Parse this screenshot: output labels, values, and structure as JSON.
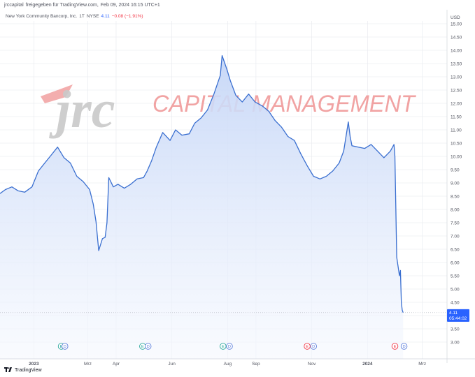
{
  "header": {
    "publisher": "jrccapital",
    "text": "freigegeben für TradingView.com,",
    "date": "Feb 09, 2024 16:15 UTC+1"
  },
  "legend": {
    "symbol": "New York Community Bancorp, Inc.",
    "interval": "1T",
    "exchange": "NYSE",
    "price": "4.11",
    "change": "−0.08 (−1.91%)"
  },
  "watermark": {
    "logo_text": "jrc",
    "subtitle": "CAPITAL MANAGEMENT"
  },
  "currency_label": "USD",
  "price_badge": {
    "price": "4.11",
    "countdown": "05:44:02"
  },
  "footer": {
    "brand": "TradingView"
  },
  "colors": {
    "line": "#3a6fd0",
    "fill_top": "#c5d6f7",
    "fill_bottom": "#f5f8fe",
    "grid": "#e6e8ee",
    "badge": "#2962ff",
    "earnings": "#26a69a",
    "earnings_neg": "#f23645",
    "dividend": "#5b7ddb",
    "watermark_red": "#f09a9a",
    "watermark_gray": "#c9c9c9"
  },
  "chart_data": {
    "type": "area",
    "title": "",
    "xlabel": "",
    "ylabel": "",
    "ylim": [
      2.7,
      15.3
    ],
    "y_ticks": [
      "15.00",
      "14.50",
      "14.00",
      "13.50",
      "13.00",
      "12.50",
      "12.00",
      "11.50",
      "11.00",
      "10.50",
      "10.00",
      "9.50",
      "9.00",
      "8.50",
      "8.00",
      "7.50",
      "7.00",
      "6.50",
      "6.00",
      "5.50",
      "5.00",
      "4.50",
      "4.00",
      "3.50",
      "3.00"
    ],
    "x_ticks": [
      "2023",
      "Mrz",
      "Apr",
      "Jun",
      "Aug",
      "Sep",
      "Nov",
      "2024",
      "Mrz"
    ],
    "x_tick_dates": [
      "2023-01-01",
      "2023-03-01",
      "2023-04-01",
      "2023-06-01",
      "2023-08-01",
      "2023-09-01",
      "2023-11-01",
      "2024-01-01",
      "2024-03-01"
    ],
    "x_range": [
      "2022-11-25",
      "2024-03-28"
    ],
    "current_price": 4.11,
    "grid": true,
    "series": [
      {
        "name": "",
        "dates": [
          "2022-11-25",
          "2022-12-01",
          "2022-12-08",
          "2022-12-15",
          "2022-12-22",
          "2022-12-30",
          "2023-01-06",
          "2023-01-13",
          "2023-01-20",
          "2023-01-27",
          "2023-02-03",
          "2023-02-10",
          "2023-02-17",
          "2023-02-24",
          "2023-03-03",
          "2023-03-07",
          "2023-03-10",
          "2023-03-13",
          "2023-03-17",
          "2023-03-20",
          "2023-03-22",
          "2023-03-24",
          "2023-03-29",
          "2023-04-03",
          "2023-04-10",
          "2023-04-17",
          "2023-04-24",
          "2023-05-01",
          "2023-05-05",
          "2023-05-10",
          "2023-05-15",
          "2023-05-22",
          "2023-05-30",
          "2023-06-05",
          "2023-06-12",
          "2023-06-20",
          "2023-06-26",
          "2023-07-03",
          "2023-07-10",
          "2023-07-17",
          "2023-07-24",
          "2023-07-26",
          "2023-07-31",
          "2023-08-04",
          "2023-08-10",
          "2023-08-17",
          "2023-08-24",
          "2023-08-31",
          "2023-09-08",
          "2023-09-15",
          "2023-09-22",
          "2023-09-29",
          "2023-10-06",
          "2023-10-13",
          "2023-10-20",
          "2023-10-27",
          "2023-11-03",
          "2023-11-10",
          "2023-11-17",
          "2023-11-24",
          "2023-12-01",
          "2023-12-06",
          "2023-12-11",
          "2023-12-13",
          "2023-12-15",
          "2023-12-22",
          "2023-12-29",
          "2024-01-05",
          "2024-01-12",
          "2024-01-19",
          "2024-01-26",
          "2024-01-30",
          "2024-01-31",
          "2024-02-02",
          "2024-02-05",
          "2024-02-06",
          "2024-02-07",
          "2024-02-08",
          "2024-02-09"
        ],
        "values": [
          8.6,
          8.75,
          8.85,
          8.7,
          8.65,
          8.85,
          9.45,
          9.75,
          10.05,
          10.35,
          9.95,
          9.75,
          9.25,
          9.05,
          8.75,
          8.2,
          7.55,
          6.45,
          6.9,
          6.95,
          7.5,
          9.2,
          8.85,
          8.95,
          8.8,
          8.95,
          9.15,
          9.2,
          9.45,
          9.85,
          10.35,
          10.9,
          10.6,
          11.0,
          10.8,
          10.85,
          11.25,
          11.45,
          11.75,
          12.35,
          13.05,
          13.8,
          13.3,
          12.85,
          12.3,
          12.05,
          12.35,
          12.05,
          11.9,
          11.7,
          11.35,
          11.1,
          10.75,
          10.6,
          10.1,
          9.65,
          9.25,
          9.15,
          9.25,
          9.45,
          9.75,
          10.2,
          11.3,
          10.75,
          10.4,
          10.35,
          10.3,
          10.45,
          10.2,
          9.95,
          10.2,
          10.45,
          10.0,
          6.2,
          5.5,
          5.7,
          4.5,
          4.2,
          4.11
        ]
      }
    ],
    "event_markers": [
      {
        "label": "E",
        "date": "2023-01-31",
        "kind": "earnings"
      },
      {
        "label": "D",
        "date": "2023-02-04",
        "kind": "dividend"
      },
      {
        "label": "E",
        "date": "2023-04-30",
        "kind": "earnings"
      },
      {
        "label": "D",
        "date": "2023-05-06",
        "kind": "dividend"
      },
      {
        "label": "E",
        "date": "2023-07-27",
        "kind": "earnings"
      },
      {
        "label": "D",
        "date": "2023-08-03",
        "kind": "dividend"
      },
      {
        "label": "E",
        "date": "2023-10-27",
        "kind": "earnings_neg"
      },
      {
        "label": "D",
        "date": "2023-11-03",
        "kind": "dividend"
      },
      {
        "label": "E",
        "date": "2024-01-31",
        "kind": "earnings_neg"
      },
      {
        "label": "D",
        "date": "2024-02-10",
        "kind": "dividend"
      }
    ]
  }
}
